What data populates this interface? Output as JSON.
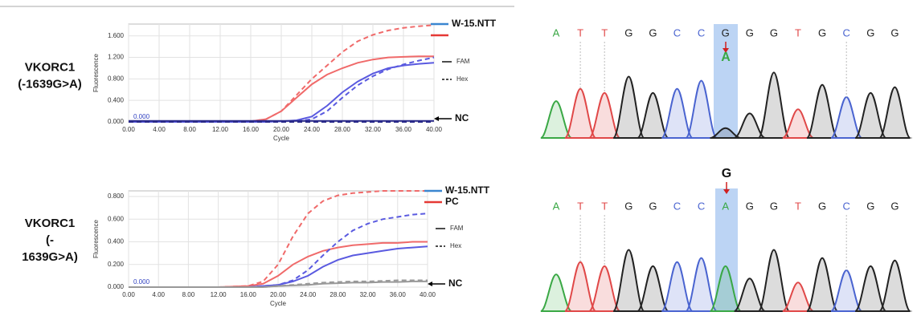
{
  "chart_data": [
    {
      "type": "line",
      "row_label": [
        "VKORC1",
        "(-1639G>A)"
      ],
      "y_label": "Fluorescence",
      "x_label": "Cycle",
      "x": [
        0,
        4,
        8,
        12,
        16,
        18,
        20,
        22,
        24,
        26,
        28,
        30,
        32,
        34,
        36,
        38,
        40
      ],
      "xlim": [
        0,
        40
      ],
      "ylim": [
        0,
        1.82
      ],
      "xticks": [
        {
          "value": 0,
          "label": "0.00"
        },
        {
          "value": 4,
          "label": "4.00"
        },
        {
          "value": 8,
          "label": "8.00"
        },
        {
          "value": 12,
          "label": "12.00"
        },
        {
          "value": 16,
          "label": "16.00"
        },
        {
          "value": 20,
          "label": "20.00"
        },
        {
          "value": 24,
          "label": "24.00"
        },
        {
          "value": 28,
          "label": "28.00"
        },
        {
          "value": 32,
          "label": "32.00"
        },
        {
          "value": 36,
          "label": "36.00"
        },
        {
          "value": 40,
          "label": "40.00"
        }
      ],
      "yticks": [
        {
          "value": 0,
          "label": "0.000"
        },
        {
          "value": 0.4,
          "label": "0.400"
        },
        {
          "value": 0.8,
          "label": "0.800"
        },
        {
          "value": 1.2,
          "label": "1.200"
        },
        {
          "value": 1.6,
          "label": "1.600"
        }
      ],
      "grid": true,
      "legend": [
        {
          "name": "W-15.NTT",
          "color": "#3a86d0"
        },
        {
          "color": "#e53935"
        }
      ],
      "style_legend": [
        "FAM",
        "Hex"
      ],
      "zero_label": "0.000",
      "nc_label": "NC",
      "series": [
        {
          "color": "#f06a6a",
          "dash": true,
          "values": [
            0,
            0,
            0,
            0,
            0.01,
            0.05,
            0.2,
            0.5,
            0.8,
            1.05,
            1.3,
            1.5,
            1.62,
            1.7,
            1.75,
            1.78,
            1.8
          ]
        },
        {
          "color": "#f06a6a",
          "dash": false,
          "values": [
            0,
            0,
            0,
            0,
            0.01,
            0.05,
            0.2,
            0.45,
            0.7,
            0.88,
            1.0,
            1.1,
            1.16,
            1.2,
            1.21,
            1.22,
            1.22
          ]
        },
        {
          "color": "#5a5ae0",
          "dash": false,
          "values": [
            0,
            0,
            0,
            0,
            0,
            0,
            0.01,
            0.03,
            0.1,
            0.3,
            0.55,
            0.75,
            0.9,
            1.0,
            1.05,
            1.08,
            1.1
          ]
        },
        {
          "color": "#5a5ae0",
          "dash": true,
          "values": [
            0,
            0,
            0,
            0,
            0,
            0,
            0,
            0.01,
            0.05,
            0.2,
            0.45,
            0.68,
            0.85,
            0.98,
            1.07,
            1.14,
            1.2
          ]
        },
        {
          "color": "#2a2a8a",
          "dash": false,
          "values": [
            0.02,
            0.02,
            0.02,
            0.02,
            0.02,
            0.02,
            0.02,
            0.02,
            0.02,
            0.02,
            0.02,
            0.02,
            0.02,
            0.02,
            0.02,
            0.02,
            0.02
          ]
        },
        {
          "color": "#2a2a8a",
          "dash": true,
          "values": [
            0,
            0,
            0,
            0,
            0,
            0,
            0,
            0,
            0,
            0,
            0,
            0,
            0,
            0,
            0,
            0,
            0
          ]
        }
      ]
    },
    {
      "type": "line",
      "row_label": [
        "VKORC1",
        "(-",
        "1639G>A)"
      ],
      "y_label": "Fluorescence",
      "x_label": "Cycle",
      "x": [
        0,
        4,
        8,
        12,
        16,
        18,
        20,
        22,
        24,
        26,
        28,
        30,
        32,
        34,
        36,
        38,
        40
      ],
      "xlim": [
        0,
        40
      ],
      "ylim": [
        0,
        0.85
      ],
      "xticks": [
        {
          "value": 0,
          "label": "0.00"
        },
        {
          "value": 4,
          "label": "4.00"
        },
        {
          "value": 8,
          "label": "8.00"
        },
        {
          "value": 12,
          "label": "12.00"
        },
        {
          "value": 16,
          "label": "16.00"
        },
        {
          "value": 20,
          "label": "20.00"
        },
        {
          "value": 24,
          "label": "24.00"
        },
        {
          "value": 28,
          "label": "28.00"
        },
        {
          "value": 32,
          "label": "32.00"
        },
        {
          "value": 36,
          "label": "36.00"
        },
        {
          "value": 40,
          "label": "40.00"
        }
      ],
      "yticks": [
        {
          "value": 0,
          "label": "0.000"
        },
        {
          "value": 0.2,
          "label": "0.200"
        },
        {
          "value": 0.4,
          "label": "0.400"
        },
        {
          "value": 0.6,
          "label": "0.600"
        },
        {
          "value": 0.8,
          "label": "0.800"
        }
      ],
      "grid": true,
      "legend": [
        {
          "name": "W-15.NTT",
          "color": "#3a86d0"
        },
        {
          "name": "PC",
          "color": "#e53935"
        }
      ],
      "style_legend": [
        "FAM",
        "Hex"
      ],
      "zero_label": "0.000",
      "nc_label": "NC",
      "series": [
        {
          "color": "#f06a6a",
          "dash": true,
          "values": [
            0,
            0,
            0,
            0,
            0.01,
            0.05,
            0.2,
            0.45,
            0.65,
            0.76,
            0.81,
            0.83,
            0.84,
            0.85,
            0.85,
            0.85,
            0.85
          ]
        },
        {
          "color": "#f06a6a",
          "dash": false,
          "values": [
            0,
            0,
            0,
            0,
            0.01,
            0.03,
            0.1,
            0.2,
            0.27,
            0.32,
            0.35,
            0.37,
            0.38,
            0.39,
            0.39,
            0.4,
            0.4
          ]
        },
        {
          "color": "#5a5ae0",
          "dash": true,
          "values": [
            0,
            0,
            0,
            0,
            0,
            0.01,
            0.02,
            0.06,
            0.15,
            0.28,
            0.4,
            0.5,
            0.56,
            0.6,
            0.62,
            0.64,
            0.65
          ]
        },
        {
          "color": "#5a5ae0",
          "dash": false,
          "values": [
            0,
            0,
            0,
            0,
            0,
            0.01,
            0.02,
            0.05,
            0.1,
            0.18,
            0.24,
            0.28,
            0.3,
            0.32,
            0.34,
            0.35,
            0.36
          ]
        },
        {
          "color": "#999999",
          "dash": true,
          "values": [
            0,
            0,
            0,
            0,
            0,
            0,
            0.01,
            0.02,
            0.03,
            0.04,
            0.045,
            0.05,
            0.05,
            0.055,
            0.06,
            0.06,
            0.06
          ]
        },
        {
          "color": "#999999",
          "dash": false,
          "values": [
            0,
            0,
            0,
            0,
            0,
            0,
            0.01,
            0.015,
            0.02,
            0.03,
            0.035,
            0.04,
            0.04,
            0.045,
            0.045,
            0.05,
            0.05
          ]
        }
      ]
    }
  ],
  "chromatograms": [
    {
      "bases": [
        "A",
        "T",
        "T",
        "G",
        "G",
        "C",
        "C",
        "G",
        "G",
        "G",
        "T",
        "G",
        "C",
        "G",
        "G"
      ],
      "mutation": "A"
    },
    {
      "bases": [
        "A",
        "T",
        "T",
        "G",
        "G",
        "C",
        "C",
        "A",
        "G",
        "G",
        "T",
        "G",
        "C",
        "G",
        "G"
      ],
      "mutation": "G"
    }
  ]
}
